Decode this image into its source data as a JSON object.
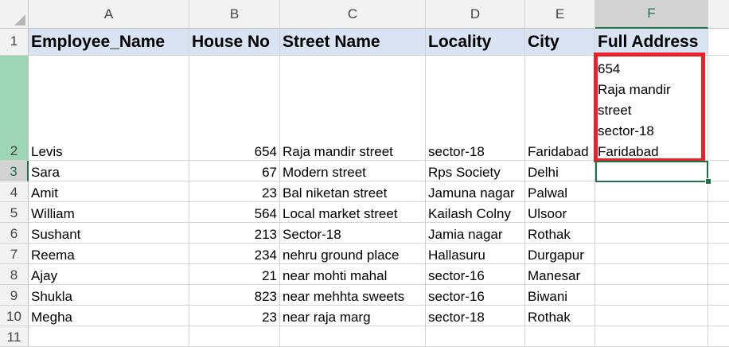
{
  "columns": [
    "A",
    "B",
    "C",
    "D",
    "E",
    "F"
  ],
  "rows": [
    "1",
    "2",
    "3",
    "4",
    "5",
    "6",
    "7",
    "8",
    "9",
    "10",
    "11"
  ],
  "headers": {
    "employee_name": "Employee_Name",
    "house_no": "House No",
    "street_name": "Street Name",
    "locality": "Locality",
    "city": "City",
    "full_address": "Full Address"
  },
  "data": [
    {
      "name": "Levis",
      "house": "654",
      "street": "Raja mandir street",
      "locality": "sector-18",
      "city": "Faridabad"
    },
    {
      "name": "Sara",
      "house": "67",
      "street": "Modern street",
      "locality": "Rps Society",
      "city": "Delhi"
    },
    {
      "name": "Amit",
      "house": "23",
      "street": "Bal niketan street",
      "locality": "Jamuna nagar",
      "city": "Palwal"
    },
    {
      "name": "William",
      "house": "564",
      "street": "Local market street",
      "locality": "Kailash Colny",
      "city": "Ulsoor"
    },
    {
      "name": "Sushant",
      "house": "213",
      "street": "Sector-18",
      "locality": "Jamia nagar",
      "city": "Rothak"
    },
    {
      "name": "Reema",
      "house": "234",
      "street": "nehru ground place",
      "locality": "Hallasuru",
      "city": "Durgapur"
    },
    {
      "name": "Ajay",
      "house": "21",
      "street": "near mohti mahal",
      "locality": "sector-16",
      "city": "Manesar"
    },
    {
      "name": "Shukla",
      "house": "823",
      "street": "near mehhta sweets",
      "locality": "sector-16",
      "city": "Biwani"
    },
    {
      "name": "Megha",
      "house": "23",
      "street": "near raja marg",
      "locality": "sector-18",
      "city": "Rothak"
    }
  ],
  "full_address_lines": [
    "654",
    "Raja mandir",
    "street",
    "sector-18",
    "Faridabad"
  ],
  "colors": {
    "header_fill": "#dae3f3",
    "highlight_border": "#e8202a",
    "selection": "#217346",
    "selected_rows": "#9fd5b7"
  }
}
